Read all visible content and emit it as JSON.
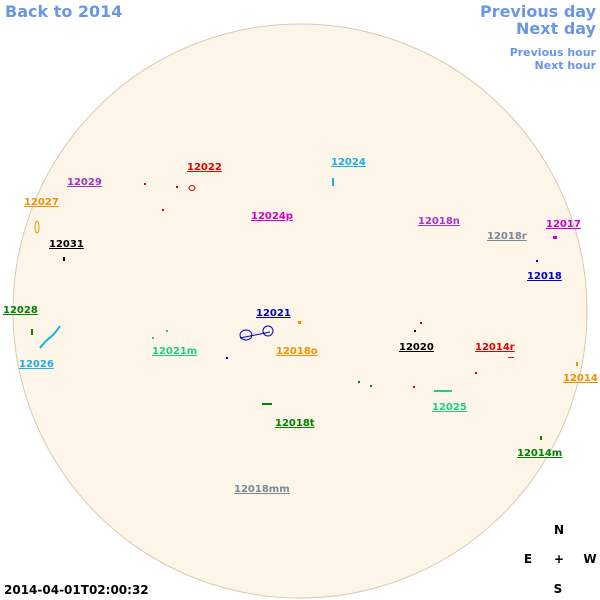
{
  "navigation": {
    "back": "Back to 2014",
    "previous_day": "Previous day",
    "next_day": "Next day",
    "previous_hour": "Previous hour",
    "next_hour": "Next hour"
  },
  "regions": [
    "12022",
    "12024",
    "12029",
    "12027",
    "12024p",
    "12018n",
    "12017",
    "12018r",
    "12031",
    "12018",
    "12028",
    "12021",
    "12020",
    "12014r",
    "12021m",
    "12018o",
    "12026",
    "12014",
    "12025",
    "12018t",
    "12014m",
    "12018mm"
  ],
  "compass": {
    "north": "N",
    "east": "E",
    "center": "+",
    "west": "W",
    "south": "S"
  },
  "timestamp": "2014-04-01T02:00:32"
}
